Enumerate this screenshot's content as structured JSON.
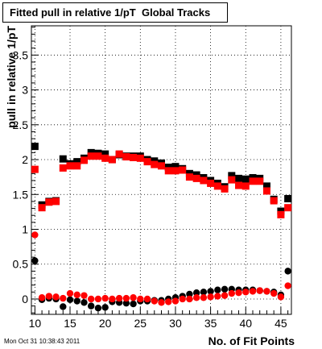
{
  "title": "Fitted pull in relative 1/pT  Global Tracks",
  "footer": "Mon Oct 31 10:38:43 2011",
  "chart_data": {
    "type": "scatter",
    "xlabel": "No. of Fit Points",
    "ylabel": "pull in relative 1/pT",
    "xlim": [
      9.5,
      46.5
    ],
    "ylim": [
      -0.22,
      3.92
    ],
    "x_ticks": [
      10,
      15,
      20,
      25,
      30,
      35,
      40,
      45
    ],
    "y_ticks": [
      0,
      0.5,
      1,
      1.5,
      2,
      2.5,
      3,
      3.5
    ],
    "x_tick_labels": [
      "10",
      "15",
      "20",
      "25",
      "30",
      "35",
      "40",
      "45"
    ],
    "y_tick_labels": [
      "0",
      "0.5",
      "1",
      "1.5",
      "2",
      "2.5",
      "3",
      "3.5"
    ],
    "grid": true,
    "series": [
      {
        "marker": "square",
        "color": "#000000",
        "x": [
          10,
          11,
          12,
          13,
          14,
          15,
          16,
          17,
          18,
          19,
          20,
          21,
          22,
          23,
          24,
          25,
          26,
          27,
          28,
          29,
          30,
          31,
          32,
          33,
          34,
          35,
          36,
          37,
          38,
          39,
          40,
          41,
          42,
          43,
          44,
          45,
          46
        ],
        "y": [
          2.19,
          1.35,
          1.4,
          1.41,
          2.01,
          1.94,
          1.97,
          2.02,
          2.1,
          2.09,
          2.08,
          2.0,
          2.07,
          2.05,
          2.05,
          2.05,
          2.0,
          1.98,
          1.95,
          1.89,
          1.9,
          1.87,
          1.8,
          1.78,
          1.74,
          1.7,
          1.66,
          1.61,
          1.77,
          1.73,
          1.72,
          1.74,
          1.73,
          1.62,
          1.43,
          1.26,
          1.44
        ]
      },
      {
        "marker": "square",
        "color": "#ff0000",
        "x": [
          10,
          11,
          12,
          13,
          14,
          15,
          16,
          17,
          18,
          19,
          20,
          21,
          22,
          23,
          24,
          25,
          26,
          27,
          28,
          29,
          30,
          31,
          32,
          33,
          34,
          35,
          36,
          37,
          38,
          39,
          40,
          41,
          42,
          43,
          44,
          45,
          46
        ],
        "y": [
          1.86,
          1.31,
          1.39,
          1.4,
          1.88,
          1.91,
          1.91,
          1.99,
          2.05,
          2.05,
          2.02,
          2.0,
          2.08,
          2.04,
          2.03,
          2.02,
          1.97,
          1.93,
          1.91,
          1.84,
          1.84,
          1.85,
          1.75,
          1.73,
          1.7,
          1.66,
          1.62,
          1.58,
          1.71,
          1.63,
          1.62,
          1.69,
          1.69,
          1.55,
          1.41,
          1.21,
          1.31
        ]
      },
      {
        "marker": "circle",
        "color": "#000000",
        "x": [
          10,
          11,
          12,
          13,
          14,
          15,
          16,
          17,
          18,
          19,
          20,
          21,
          22,
          23,
          24,
          25,
          26,
          27,
          28,
          29,
          30,
          31,
          32,
          33,
          34,
          35,
          36,
          37,
          38,
          39,
          40,
          41,
          42,
          43,
          44,
          45,
          46
        ],
        "y": [
          0.55,
          -0.01,
          0.01,
          0.0,
          -0.11,
          -0.01,
          -0.03,
          -0.05,
          -0.1,
          -0.13,
          -0.12,
          -0.04,
          -0.05,
          -0.06,
          -0.07,
          -0.03,
          -0.03,
          -0.02,
          -0.02,
          0.0,
          0.02,
          0.04,
          0.07,
          0.09,
          0.1,
          0.11,
          0.13,
          0.14,
          0.14,
          0.13,
          0.13,
          0.13,
          0.12,
          0.11,
          0.1,
          0.06,
          0.4
        ]
      },
      {
        "marker": "circle",
        "color": "#ff0000",
        "x": [
          10,
          11,
          12,
          13,
          14,
          15,
          16,
          17,
          18,
          19,
          20,
          21,
          22,
          23,
          24,
          25,
          26,
          27,
          28,
          29,
          30,
          31,
          32,
          33,
          34,
          35,
          36,
          37,
          38,
          39,
          40,
          41,
          42,
          43,
          44,
          45,
          46
        ],
        "y": [
          0.92,
          0.02,
          0.04,
          0.03,
          0.01,
          0.08,
          0.06,
          0.05,
          0.0,
          0.0,
          0.01,
          0.0,
          0.01,
          0.01,
          0.02,
          0.0,
          0.0,
          -0.03,
          -0.05,
          -0.04,
          -0.03,
          0.0,
          0.0,
          0.02,
          0.02,
          0.03,
          0.04,
          0.05,
          0.08,
          0.09,
          0.1,
          0.11,
          0.12,
          0.11,
          0.08,
          0.03,
          0.19
        ]
      }
    ]
  }
}
